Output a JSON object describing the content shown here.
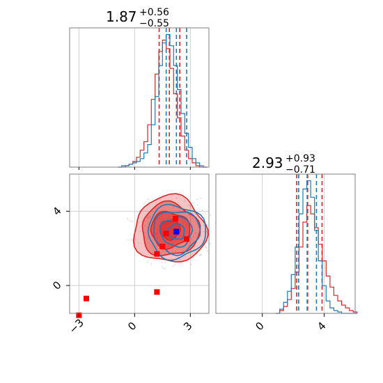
{
  "chart_data": [
    {
      "type": "histogram",
      "panel": "marginal-parameter-1",
      "title": {
        "value": "1.87",
        "plus": "+0.56",
        "minus": "−0.55"
      },
      "xlim": [
        -3.5,
        4.0
      ],
      "grid": true,
      "series": [
        {
          "color": "#d62728",
          "x": [
            -0.8,
            -0.6,
            -0.4,
            -0.2,
            0.0,
            0.2,
            0.4,
            0.6,
            0.8,
            1.0,
            1.2,
            1.4,
            1.6,
            1.8,
            2.0,
            2.2,
            2.4,
            2.6,
            2.8,
            3.0,
            3.2,
            3.4,
            3.6,
            3.8
          ],
          "counts": [
            0,
            0,
            1,
            2,
            4,
            7,
            12,
            18,
            30,
            48,
            66,
            82,
            90,
            84,
            70,
            52,
            35,
            22,
            12,
            6,
            3,
            1,
            0,
            0
          ],
          "quantile_lines": [
            1.32,
            1.87,
            2.43
          ]
        },
        {
          "color": "#1f77b4",
          "x": [
            -0.8,
            -0.6,
            -0.4,
            -0.2,
            0.0,
            0.2,
            0.4,
            0.6,
            0.8,
            1.0,
            1.2,
            1.4,
            1.6,
            1.8,
            2.0,
            2.2,
            2.4,
            2.6,
            2.8,
            3.0,
            3.2,
            3.4,
            3.6,
            3.8
          ],
          "counts": [
            0,
            1,
            1,
            2,
            3,
            4,
            6,
            10,
            16,
            30,
            50,
            72,
            88,
            94,
            86,
            72,
            55,
            38,
            24,
            14,
            6,
            3,
            1,
            0
          ],
          "quantile_lines": [
            1.7,
            2.25,
            2.8
          ]
        }
      ]
    },
    {
      "type": "scatter",
      "panel": "joint-contour",
      "xlim": [
        -3.5,
        4.0
      ],
      "ylim": [
        -1.5,
        6.0
      ],
      "xticks": [
        "−3",
        "0",
        "3"
      ],
      "yticks": [
        "0",
        "4"
      ],
      "grid": true,
      "contours": [
        {
          "color": "#d62728",
          "center": [
            1.9,
            3.0
          ],
          "levels": [
            0.55,
            1.05,
            1.55,
            1.95
          ]
        },
        {
          "color": "#1f77b4",
          "center": [
            2.25,
            2.9
          ],
          "levels": [
            0.45,
            0.85,
            1.25,
            1.55
          ]
        }
      ],
      "series": [
        {
          "color": "#ff0000",
          "marker": "square",
          "points": [
            [
              -3.0,
              -1.6
            ],
            [
              -2.6,
              -0.7
            ],
            [
              1.2,
              -0.35
            ],
            [
              1.2,
              1.7
            ],
            [
              1.5,
              2.1
            ],
            [
              1.7,
              2.8
            ],
            [
              2.2,
              3.6
            ],
            [
              2.8,
              2.5
            ]
          ]
        },
        {
          "color": "#0000ff",
          "marker": "square",
          "points": [
            [
              2.25,
              2.9
            ]
          ]
        }
      ]
    },
    {
      "type": "histogram",
      "panel": "marginal-parameter-2",
      "title": {
        "value": "2.93",
        "plus": "+0.93",
        "minus": "−0.71"
      },
      "xlim": [
        -3.0,
        6.0
      ],
      "xticks": [
        "0",
        "4"
      ],
      "grid": true,
      "series": [
        {
          "color": "#d62728",
          "x": [
            1.0,
            1.25,
            1.5,
            1.75,
            2.0,
            2.25,
            2.5,
            2.75,
            3.0,
            3.25,
            3.5,
            3.75,
            4.0,
            4.25,
            4.5,
            4.75,
            5.0,
            5.25,
            5.5,
            5.75,
            6.0
          ],
          "counts": [
            0,
            2,
            5,
            10,
            18,
            30,
            48,
            66,
            78,
            72,
            62,
            50,
            38,
            27,
            19,
            13,
            9,
            6,
            4,
            2,
            1
          ],
          "quantile_lines": [
            2.22,
            2.93,
            3.86
          ]
        },
        {
          "color": "#1f77b4",
          "x": [
            1.0,
            1.25,
            1.5,
            1.75,
            2.0,
            2.25,
            2.5,
            2.75,
            3.0,
            3.25,
            3.5,
            3.75,
            4.0,
            4.25,
            4.5,
            4.75,
            5.0,
            5.25,
            5.5,
            5.75,
            6.0
          ],
          "counts": [
            0,
            3,
            8,
            16,
            28,
            48,
            72,
            90,
            96,
            84,
            60,
            38,
            20,
            9,
            4,
            2,
            1,
            0,
            0,
            0,
            0
          ],
          "quantile_lines": [
            2.35,
            2.9,
            3.5
          ]
        }
      ]
    }
  ]
}
